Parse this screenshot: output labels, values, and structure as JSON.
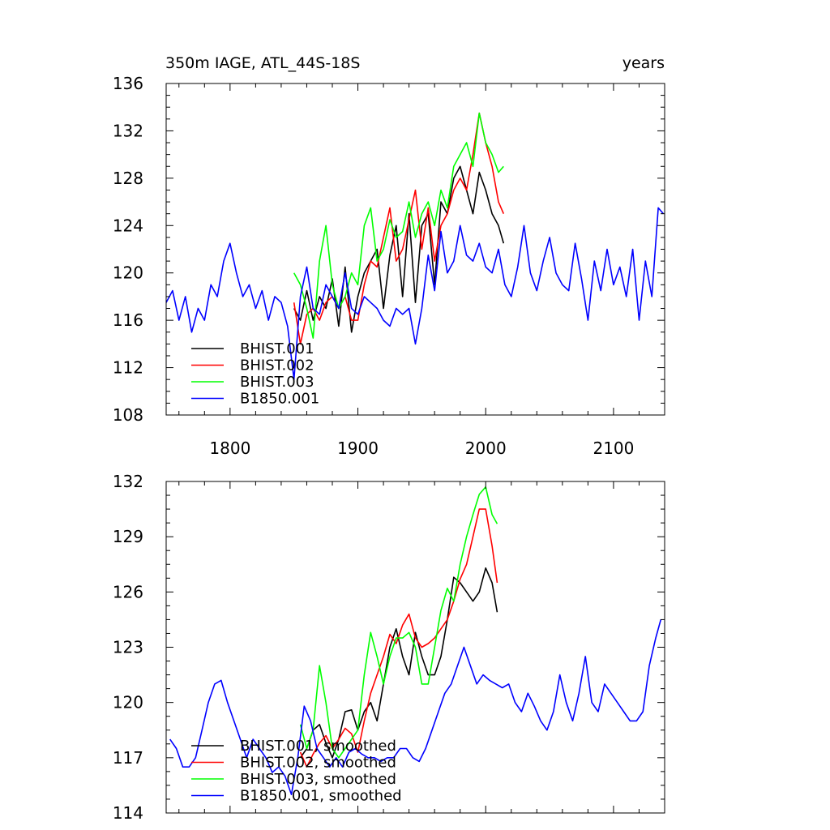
{
  "chart_data": [
    {
      "type": "line",
      "title": "350m IAGE, ATL_44S-18S",
      "units_label": "years",
      "xlim": [
        1750,
        2140
      ],
      "ylim": [
        108,
        136
      ],
      "xticks": [
        1800,
        1900,
        2000,
        2100
      ],
      "yticks": [
        108,
        112,
        116,
        120,
        124,
        128,
        132,
        136
      ],
      "xtick_labels": [
        "1800",
        "1900",
        "2000",
        "2100"
      ],
      "ytick_labels": [
        "108",
        "112",
        "116",
        "120",
        "124",
        "128",
        "132",
        "136"
      ],
      "legend_position": "bottom-left",
      "series": [
        {
          "name": "BHIST.001",
          "color": "#000000",
          "x": [
            1850,
            1855,
            1860,
            1865,
            1870,
            1875,
            1880,
            1885,
            1890,
            1895,
            1900,
            1905,
            1910,
            1915,
            1920,
            1925,
            1930,
            1935,
            1940,
            1945,
            1950,
            1955,
            1960,
            1965,
            1970,
            1975,
            1980,
            1985,
            1990,
            1995,
            2000,
            2005,
            2010,
            2014
          ],
          "values": [
            117,
            116,
            118.5,
            116,
            118,
            117,
            119.5,
            115.5,
            120.5,
            115,
            118,
            120,
            121,
            122,
            117,
            121.5,
            124,
            118,
            125,
            117.5,
            124,
            125,
            119,
            126,
            125,
            128,
            129,
            127,
            125,
            128.5,
            127,
            125,
            124,
            122.5
          ]
        },
        {
          "name": "BHIST.002",
          "color": "#ff0000",
          "x": [
            1850,
            1855,
            1860,
            1865,
            1870,
            1875,
            1880,
            1885,
            1890,
            1895,
            1900,
            1905,
            1910,
            1915,
            1920,
            1925,
            1930,
            1935,
            1940,
            1945,
            1950,
            1955,
            1960,
            1965,
            1970,
            1975,
            1980,
            1985,
            1990,
            1995,
            2000,
            2005,
            2010,
            2014
          ],
          "values": [
            117.5,
            114,
            116.5,
            117,
            116,
            117.5,
            118,
            117,
            118,
            116,
            116,
            119,
            121,
            120.5,
            123,
            125.5,
            121,
            122,
            124.5,
            127,
            122,
            125.5,
            121,
            124,
            125,
            127,
            128,
            127,
            130,
            133.5,
            131,
            129,
            126,
            125
          ]
        },
        {
          "name": "BHIST.003",
          "color": "#00ff00",
          "x": [
            1850,
            1855,
            1860,
            1865,
            1870,
            1875,
            1880,
            1885,
            1890,
            1895,
            1900,
            1905,
            1910,
            1915,
            1920,
            1925,
            1930,
            1935,
            1940,
            1945,
            1950,
            1955,
            1960,
            1965,
            1970,
            1975,
            1980,
            1985,
            1990,
            1995,
            2000,
            2005,
            2010,
            2014
          ],
          "values": [
            120,
            119,
            117,
            114.5,
            121,
            124,
            119,
            117,
            118,
            120,
            119,
            124,
            125.5,
            121,
            122,
            124.5,
            123,
            123.5,
            126,
            123,
            125,
            126,
            124,
            127,
            125.5,
            129,
            130,
            131,
            129,
            133.5,
            131,
            130,
            128.5,
            129
          ]
        },
        {
          "name": "B1850.001",
          "color": "#0000ff",
          "x": [
            1750,
            1755,
            1760,
            1765,
            1770,
            1775,
            1780,
            1785,
            1790,
            1795,
            1800,
            1805,
            1810,
            1815,
            1820,
            1825,
            1830,
            1835,
            1840,
            1845,
            1850,
            1855,
            1860,
            1865,
            1870,
            1875,
            1880,
            1885,
            1890,
            1895,
            1900,
            1905,
            1910,
            1915,
            1920,
            1925,
            1930,
            1935,
            1940,
            1945,
            1950,
            1955,
            1960,
            1965,
            1970,
            1975,
            1980,
            1985,
            1990,
            1995,
            2000,
            2005,
            2010,
            2015,
            2020,
            2025,
            2030,
            2035,
            2040,
            2045,
            2050,
            2055,
            2060,
            2065,
            2070,
            2075,
            2080,
            2085,
            2090,
            2095,
            2100,
            2105,
            2110,
            2115,
            2120,
            2125,
            2130,
            2135,
            2139
          ],
          "values": [
            117.5,
            118.5,
            116,
            118,
            115,
            117,
            116,
            119,
            118,
            121,
            122.5,
            120,
            118,
            119,
            117,
            118.5,
            116,
            118,
            117.5,
            115.5,
            111,
            118,
            120.5,
            117,
            116.5,
            119,
            118,
            117,
            120,
            117,
            116.5,
            118,
            117.5,
            117,
            116,
            115.5,
            117,
            116.5,
            117,
            114,
            117,
            121.5,
            118.5,
            123.5,
            120,
            121,
            124,
            121.5,
            121,
            122.5,
            120.5,
            120,
            122,
            119,
            118,
            120.5,
            124,
            120,
            118.5,
            121,
            123,
            120,
            119,
            118.5,
            122.5,
            119.5,
            116,
            121,
            118.5,
            122,
            119,
            120.5,
            118,
            122,
            116,
            121,
            118,
            125.5,
            125
          ]
        }
      ]
    },
    {
      "type": "line",
      "title": "",
      "xlim": [
        1750,
        2140
      ],
      "ylim": [
        114,
        132
      ],
      "xticks": [
        1800,
        1900,
        2000,
        2100
      ],
      "yticks": [
        114,
        117,
        120,
        123,
        126,
        129,
        132
      ],
      "ytick_labels": [
        "114",
        "117",
        "120",
        "123",
        "126",
        "129",
        "132"
      ],
      "legend_position": "bottom-left",
      "series": [
        {
          "name": "BHIST.001, smoothed",
          "color": "#000000",
          "x": [
            1855,
            1860,
            1865,
            1870,
            1875,
            1880,
            1885,
            1890,
            1895,
            1900,
            1905,
            1910,
            1915,
            1920,
            1925,
            1930,
            1935,
            1940,
            1945,
            1950,
            1955,
            1960,
            1965,
            1970,
            1975,
            1980,
            1985,
            1990,
            1995,
            2000,
            2005,
            2009
          ],
          "values": [
            117,
            117.5,
            118.5,
            118.8,
            117.8,
            117,
            118,
            119.5,
            119.6,
            118.5,
            119.5,
            120,
            119,
            121,
            123,
            124,
            122.5,
            121.5,
            123.8,
            122.5,
            121.5,
            121.5,
            122.5,
            124.5,
            126.8,
            126.5,
            126,
            125.5,
            126,
            127.3,
            126.5,
            124.9
          ]
        },
        {
          "name": "BHIST.002, smoothed",
          "color": "#ff0000",
          "x": [
            1855,
            1860,
            1865,
            1870,
            1875,
            1880,
            1885,
            1890,
            1895,
            1900,
            1905,
            1910,
            1915,
            1920,
            1925,
            1930,
            1935,
            1940,
            1945,
            1950,
            1955,
            1960,
            1965,
            1970,
            1975,
            1980,
            1985,
            1990,
            1995,
            2000,
            2005,
            2009
          ],
          "values": [
            117.3,
            116.5,
            117.2,
            117.8,
            118.2,
            117.5,
            118,
            118.6,
            118.3,
            117.3,
            119,
            120.5,
            121.5,
            122.5,
            123.7,
            123.2,
            124.2,
            124.8,
            123.5,
            123,
            123.2,
            123.5,
            124,
            124.5,
            125.5,
            126.7,
            127.5,
            129,
            130.5,
            130.5,
            128.5,
            126.5
          ]
        },
        {
          "name": "BHIST.003, smoothed",
          "color": "#00ff00",
          "x": [
            1855,
            1860,
            1865,
            1870,
            1875,
            1880,
            1885,
            1890,
            1895,
            1900,
            1905,
            1910,
            1915,
            1920,
            1925,
            1930,
            1935,
            1940,
            1945,
            1950,
            1955,
            1960,
            1965,
            1970,
            1975,
            1980,
            1985,
            1990,
            1995,
            2000,
            2005,
            2009
          ],
          "values": [
            118.8,
            117.5,
            118.5,
            122,
            120,
            117.5,
            117,
            117.5,
            118,
            118.5,
            121.5,
            123.8,
            122.5,
            121,
            122.5,
            123.5,
            123.5,
            123.8,
            123,
            121,
            121,
            123,
            125,
            126.2,
            125.5,
            127.5,
            129,
            130.2,
            131.3,
            131.7,
            130.2,
            129.7
          ]
        },
        {
          "name": "B1850.001, smoothed",
          "color": "#0000ff",
          "x": [
            1753,
            1758,
            1763,
            1768,
            1773,
            1778,
            1783,
            1788,
            1793,
            1798,
            1803,
            1808,
            1813,
            1818,
            1823,
            1828,
            1833,
            1838,
            1843,
            1848,
            1853,
            1858,
            1863,
            1868,
            1873,
            1878,
            1883,
            1888,
            1893,
            1898,
            1903,
            1908,
            1913,
            1918,
            1923,
            1928,
            1933,
            1938,
            1943,
            1948,
            1953,
            1958,
            1963,
            1968,
            1973,
            1978,
            1983,
            1988,
            1993,
            1998,
            2003,
            2008,
            2013,
            2018,
            2023,
            2028,
            2033,
            2038,
            2043,
            2048,
            2053,
            2058,
            2063,
            2068,
            2073,
            2078,
            2083,
            2088,
            2093,
            2098,
            2103,
            2108,
            2113,
            2118,
            2123,
            2128,
            2133,
            2137
          ],
          "values": [
            118,
            117.5,
            116.5,
            116.5,
            117,
            118.5,
            120,
            121,
            121.2,
            120,
            119,
            118,
            117,
            118,
            117.5,
            117,
            116.2,
            116.5,
            116,
            115,
            117,
            119.8,
            119,
            117.5,
            117,
            116.5,
            117,
            116.5,
            117.3,
            117.5,
            117.2,
            117,
            117,
            116.8,
            117,
            117,
            117.5,
            117.5,
            117,
            116.8,
            117.5,
            118.5,
            119.5,
            120.5,
            121,
            122,
            123,
            122,
            121,
            121.5,
            121.2,
            121,
            120.8,
            121,
            120,
            119.5,
            120.5,
            119.8,
            119,
            118.5,
            119.5,
            121.5,
            120,
            119,
            120.5,
            122.5,
            120,
            119.5,
            121,
            120.5,
            120,
            119.5,
            119,
            119,
            119.5,
            122,
            123.5,
            124.5
          ]
        }
      ]
    }
  ]
}
